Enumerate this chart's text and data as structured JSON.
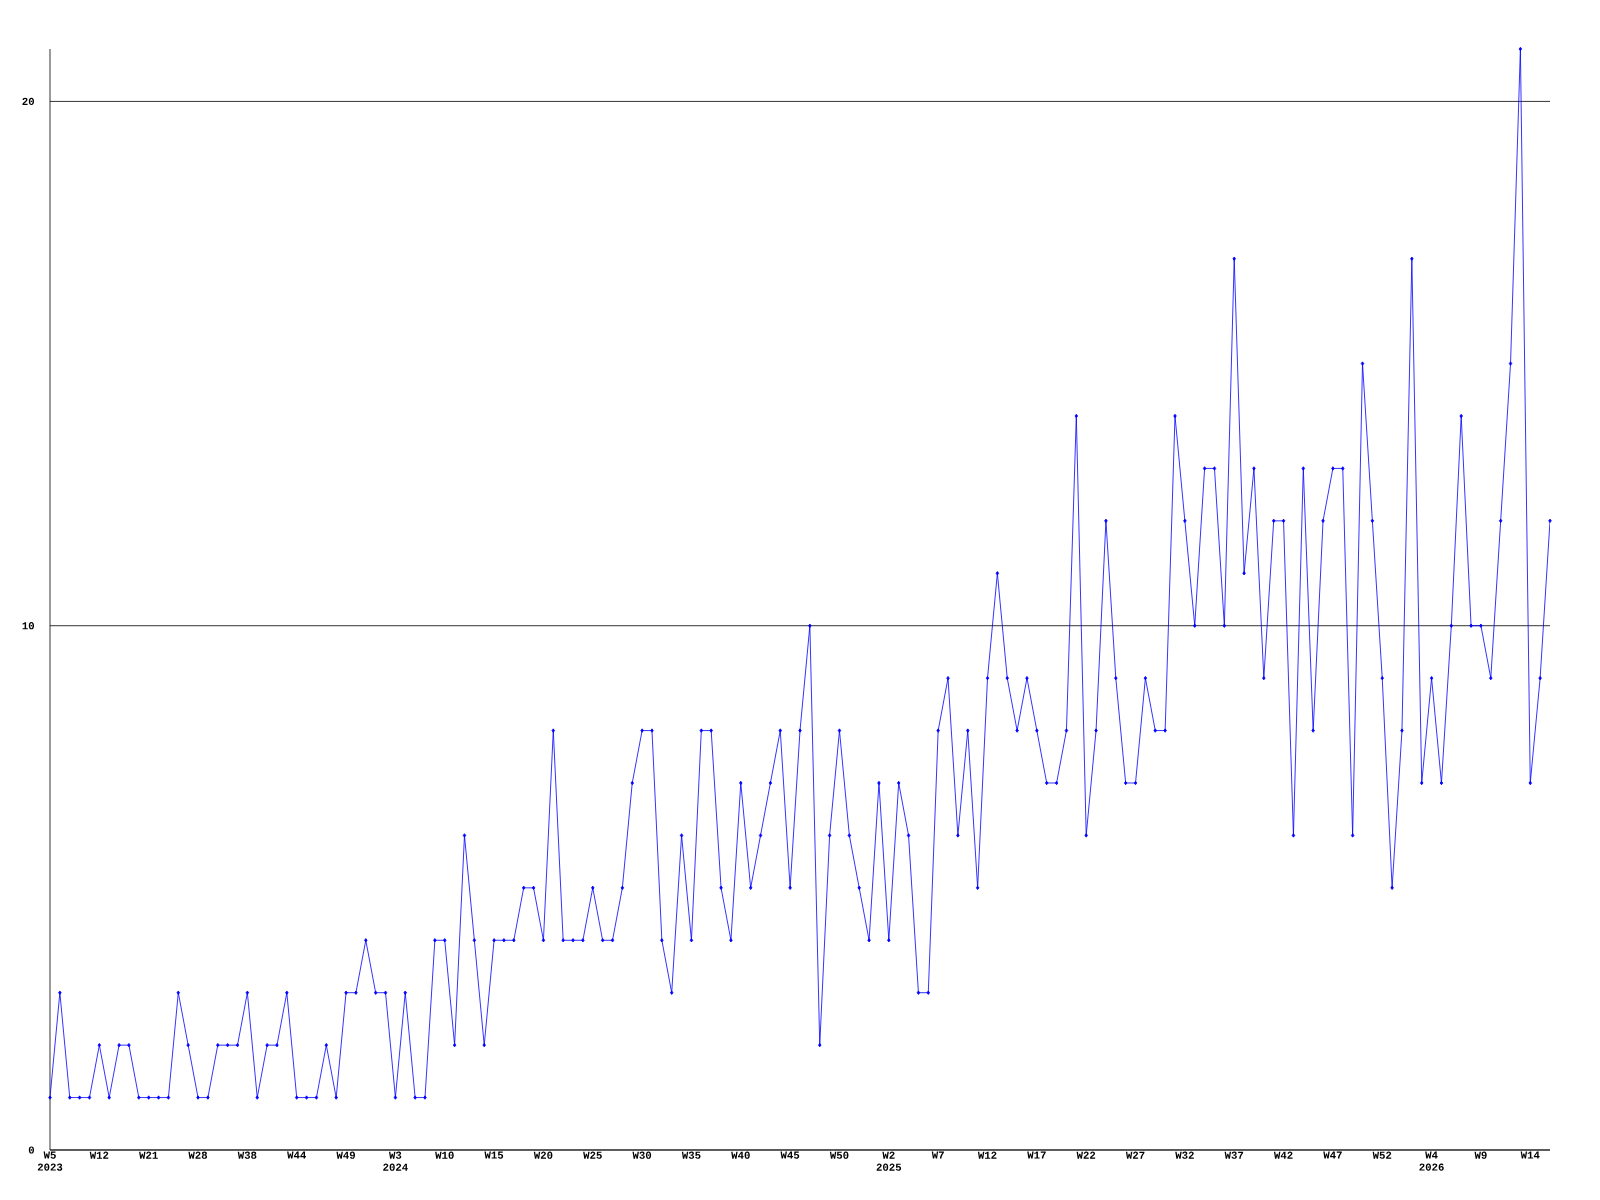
{
  "chart_data": {
    "type": "line",
    "categories": [
      "W5 2023",
      null,
      null,
      null,
      null,
      "W12",
      null,
      null,
      null,
      null,
      "W21",
      null,
      null,
      null,
      null,
      "W28",
      null,
      null,
      null,
      null,
      "W38",
      null,
      null,
      null,
      null,
      "W44",
      null,
      null,
      null,
      null,
      "W49",
      null,
      null,
      null,
      null,
      "W3 2024",
      null,
      null,
      null,
      null,
      "W10",
      null,
      null,
      null,
      null,
      "W15",
      null,
      null,
      null,
      null,
      "W20",
      null,
      null,
      null,
      null,
      "W25",
      null,
      null,
      null,
      null,
      "W30",
      null,
      null,
      null,
      null,
      "W35",
      null,
      null,
      null,
      null,
      "W40",
      null,
      null,
      null,
      null,
      "W45",
      null,
      null,
      null,
      null,
      "W50",
      null,
      null,
      null,
      null,
      "W2 2025",
      null,
      null,
      null,
      null,
      "W7",
      null,
      null,
      null,
      null,
      "W12",
      null,
      null,
      null,
      null,
      "W17",
      null,
      null,
      null,
      null,
      "W22",
      null,
      null,
      null,
      null,
      "W27",
      null,
      null,
      null,
      null,
      "W32",
      null,
      null,
      null,
      null,
      "W37",
      null,
      null,
      null,
      null,
      "W42",
      null,
      null,
      null,
      null,
      "W47",
      null,
      null,
      null,
      null,
      "W52",
      null,
      null,
      null,
      null,
      "W4 2026",
      null,
      null,
      null,
      null,
      "W9",
      null,
      null,
      null,
      null,
      "W14",
      null,
      null
    ],
    "values": [
      1,
      3,
      1,
      1,
      1,
      2,
      1,
      2,
      2,
      1,
      1,
      1,
      1,
      3,
      2,
      1,
      1,
      2,
      2,
      2,
      3,
      1,
      2,
      2,
      3,
      1,
      1,
      1,
      2,
      1,
      3,
      3,
      4,
      3,
      3,
      1,
      3,
      1,
      1,
      4,
      4,
      2,
      6,
      4,
      2,
      4,
      4,
      4,
      5,
      5,
      4,
      8,
      4,
      4,
      4,
      5,
      4,
      4,
      5,
      7,
      8,
      8,
      4,
      3,
      6,
      4,
      8,
      8,
      5,
      4,
      7,
      5,
      6,
      7,
      8,
      5,
      8,
      10,
      2,
      6,
      8,
      6,
      5,
      4,
      7,
      4,
      7,
      6,
      3,
      3,
      8,
      9,
      6,
      8,
      5,
      9,
      11,
      9,
      8,
      9,
      8,
      7,
      7,
      8,
      14,
      6,
      8,
      12,
      9,
      7,
      7,
      9,
      8,
      8,
      14,
      12,
      10,
      13,
      13,
      10,
      17,
      11,
      13,
      9,
      12,
      12,
      6,
      13,
      8,
      12,
      13,
      13,
      6,
      15,
      12,
      9,
      5,
      8,
      17,
      7,
      9,
      7,
      10,
      14,
      10,
      10,
      9,
      12,
      15,
      21,
      7,
      9,
      12
    ],
    "color": "#0000ff",
    "ylim": [
      0,
      21
    ],
    "yticks": [
      0,
      10,
      20
    ],
    "grid": "y",
    "marker": "diamond"
  }
}
